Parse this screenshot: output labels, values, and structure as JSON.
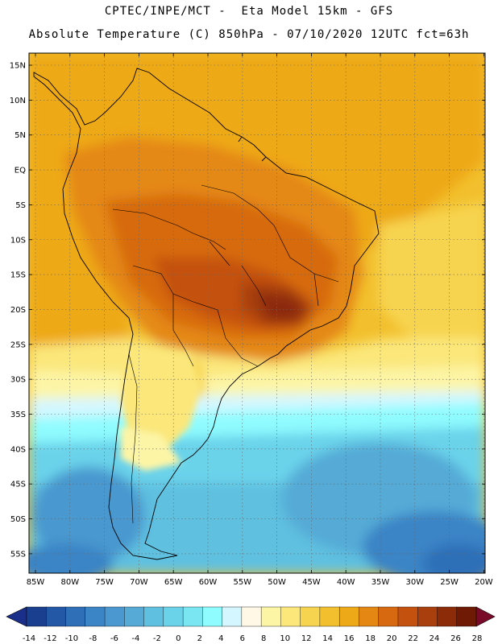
{
  "header": {
    "line1": "CPTEC/INPE/MCT -  Eta Model 15km - GFS",
    "line2": "Absolute Temperature (C) 850hPa - 07/10/2020 12UTC fct=63h"
  },
  "map": {
    "lat_labels": [
      "15N",
      "10N",
      "5N",
      "EQ",
      "5S",
      "10S",
      "15S",
      "20S",
      "25S",
      "30S",
      "35S",
      "40S",
      "45S",
      "50S",
      "55S"
    ],
    "lon_labels": [
      "85W",
      "80W",
      "75W",
      "70W",
      "65W",
      "60W",
      "55W",
      "50W",
      "45W",
      "40W",
      "35W",
      "30W",
      "25W",
      "20W"
    ],
    "extent": {
      "lon_min": -86,
      "lon_max": -19,
      "lat_min": -58,
      "lat_max": 17
    },
    "gridlines": true
  },
  "colorbar": {
    "labels": [
      "-14",
      "-12",
      "-10",
      "-8",
      "-6",
      "-4",
      "-2",
      "0",
      "2",
      "4",
      "6",
      "8",
      "10",
      "12",
      "14",
      "16",
      "18",
      "20",
      "22",
      "24",
      "26",
      "28"
    ],
    "colors": [
      "#1a3f8f",
      "#2358a6",
      "#2e6fb8",
      "#3b84c6",
      "#4a98cf",
      "#55aad6",
      "#5fc0e0",
      "#6ad3ea",
      "#79e6f2",
      "#8ffcff",
      "#d4f7ff",
      "#fff8e6",
      "#fdf5a6",
      "#fbe77a",
      "#f7d44f",
      "#f2c02e",
      "#eea918",
      "#e48813",
      "#d76a10",
      "#c4510e",
      "#a83f0c",
      "#8c2b08",
      "#6f1a05"
    ],
    "under_color": "#1a2f8a",
    "over_color": "#7a0a2a"
  }
}
